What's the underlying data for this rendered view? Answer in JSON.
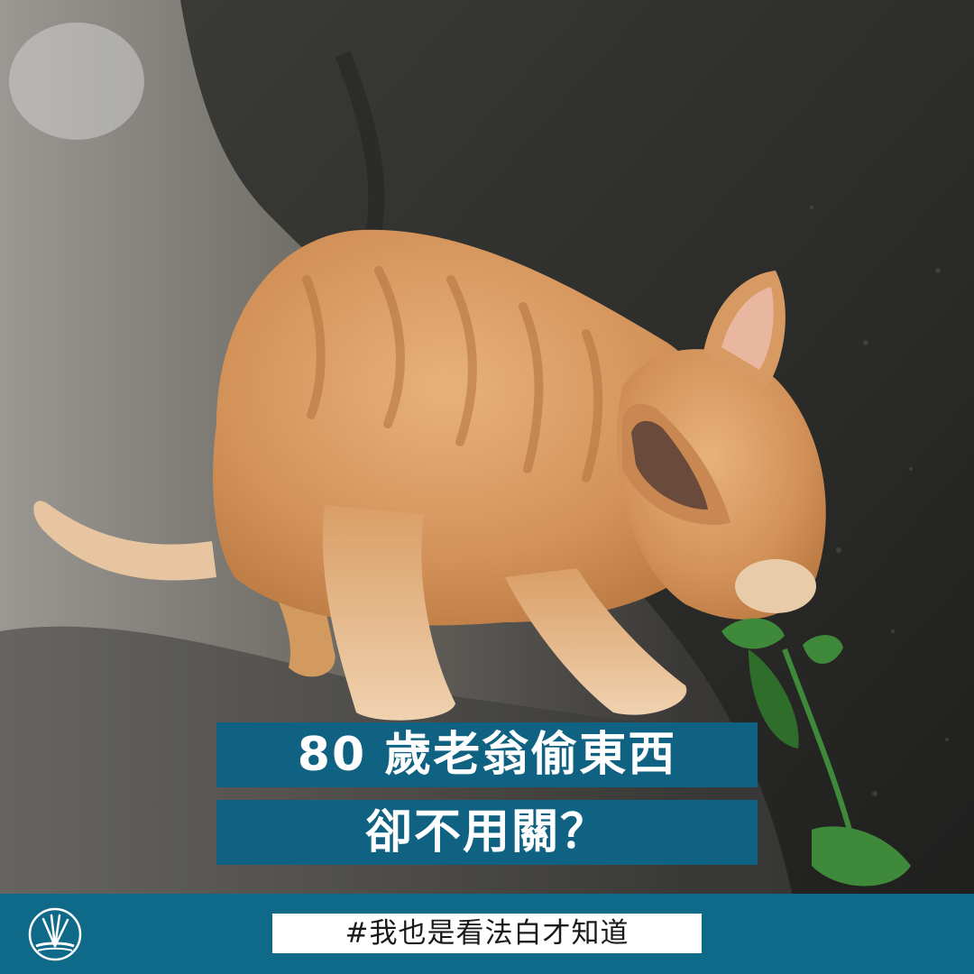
{
  "caption": {
    "line1": "80 歲老翁偷東西",
    "line2": "卻不用關？"
  },
  "footer": {
    "hashtag": "#我也是看法白才知道",
    "logo_icon": "fan-logo-icon"
  },
  "colors": {
    "caption_bg": "#0f6281",
    "footer_bg": "#0f6a8a",
    "cat_fur": "#d8995a",
    "wall": "#2e2e2c",
    "ground": "#8a8680",
    "leaf": "#3f8a3a"
  }
}
